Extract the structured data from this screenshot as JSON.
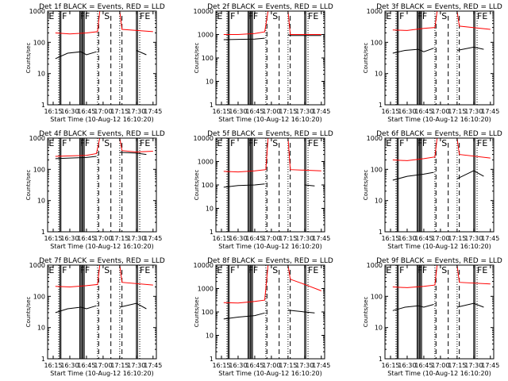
{
  "figure": {
    "xaxis_label": "Start Time (10-Aug-12 16:10:20)",
    "yaxis_label": "Counts/sec",
    "x_tick_labels": [
      "16:15",
      "16:30",
      "16:45",
      "17:00",
      "17:15",
      "17:30",
      "17:45"
    ],
    "colors": {
      "events": "#000000",
      "lld": "#ff0000",
      "frame": "#000000"
    },
    "markers": {
      "e_label": "E",
      "f_label": "F",
      "s_label": "S"
    }
  },
  "chart_data": [
    {
      "type": "line",
      "title": "Det 1f  BLACK = Events, RED = LLD",
      "xlabel": "Start Time (10-Aug-12 16:10:20)",
      "ylabel": "Counts/sec",
      "x_range": [
        "16:10",
        "17:48"
      ],
      "y_scale": "log",
      "ylim": [
        1,
        1000
      ],
      "y_tick_labels": [
        "1",
        "10",
        "100",
        "1000"
      ],
      "grid": false,
      "series": [
        {
          "name": "Events",
          "color": "#000000",
          "segments": [
            {
              "x": [
                "16:17",
                "16:28",
                "16:40",
                "16:45",
                "16:54"
              ],
              "y": [
                30,
                45,
                50,
                40,
                50
              ]
            },
            {
              "x": [
                "17:30",
                "17:39"
              ],
              "y": [
                55,
                40
              ]
            }
          ]
        },
        {
          "name": "LLD",
          "color": "#ff0000",
          "segments": [
            {
              "x": [
                "16:17",
                "16:30",
                "16:45",
                "16:55",
                "16:57",
                "17:15",
                "17:17",
                "17:45"
              ],
              "y": [
                200,
                185,
                200,
                220,
                1000,
                1000,
                260,
                220
              ]
            }
          ]
        }
      ],
      "events_markers": {
        "solid": [
          "16:21",
          "16:22",
          "16:39",
          "16:40",
          "16:41",
          "16:42",
          "16:43",
          "17:30",
          "17:31"
        ],
        "dashed": [
          "16:56",
          "17:07",
          "17:17"
        ],
        "dotted": [
          "16:20",
          "16:55",
          "17:15",
          "17:33"
        ]
      }
    },
    {
      "type": "line",
      "title": "Det 2f  BLACK = Events, RED = LLD",
      "xlabel": "Start Time (10-Aug-12 16:10:20)",
      "ylabel": "Counts/sec",
      "x_range": [
        "16:10",
        "17:48"
      ],
      "y_scale": "log",
      "ylim": [
        1,
        10000
      ],
      "y_tick_labels": [
        "1",
        "10",
        "100",
        "1000",
        "10000"
      ],
      "grid": false,
      "series": [
        {
          "name": "Events",
          "color": "#000000",
          "segments": [
            {
              "x": [
                "16:17",
                "16:30",
                "16:45",
                "16:54"
              ],
              "y": [
                600,
                620,
                640,
                700
              ]
            },
            {
              "x": [
                "17:15",
                "17:17",
                "17:30",
                "17:45"
              ],
              "y": [
                1000,
                900,
                900,
                900
              ]
            }
          ]
        },
        {
          "name": "LLD",
          "color": "#ff0000",
          "segments": [
            {
              "x": [
                "16:17",
                "16:30",
                "16:45",
                "16:54",
                "16:57",
                "17:15",
                "17:17",
                "17:45"
              ],
              "y": [
                1000,
                1000,
                1100,
                1300,
                10000,
                10000,
                1000,
                1000
              ]
            }
          ]
        }
      ],
      "events_markers": {
        "solid": [
          "16:21",
          "16:22",
          "16:39",
          "16:40",
          "16:41",
          "16:42",
          "16:43",
          "17:30",
          "17:31"
        ],
        "dashed": [
          "16:56",
          "17:07",
          "17:17"
        ],
        "dotted": [
          "16:20",
          "16:55",
          "17:15",
          "17:33"
        ]
      }
    },
    {
      "type": "line",
      "title": "Det 3f  BLACK = Events, RED = LLD",
      "xlabel": "Start Time (10-Aug-12 16:10:20)",
      "ylabel": "Counts/sec",
      "x_range": [
        "16:10",
        "17:48"
      ],
      "y_scale": "log",
      "ylim": [
        1,
        1000
      ],
      "y_tick_labels": [
        "1",
        "10",
        "100",
        "1000"
      ],
      "grid": false,
      "series": [
        {
          "name": "Events",
          "color": "#000000",
          "segments": [
            {
              "x": [
                "16:17",
                "16:28",
                "16:40",
                "16:45",
                "16:54"
              ],
              "y": [
                45,
                55,
                60,
                50,
                65
              ]
            },
            {
              "x": [
                "17:15",
                "17:30",
                "17:39"
              ],
              "y": [
                55,
                70,
                60
              ]
            }
          ]
        },
        {
          "name": "LLD",
          "color": "#ff0000",
          "segments": [
            {
              "x": [
                "16:17",
                "16:30",
                "16:45",
                "16:55",
                "16:57",
                "17:15",
                "17:17",
                "17:45"
              ],
              "y": [
                250,
                240,
                280,
                300,
                1000,
                1000,
                330,
                260
              ]
            }
          ]
        }
      ],
      "events_markers": {
        "solid": [
          "16:21",
          "16:22",
          "16:39",
          "16:40",
          "16:41",
          "16:42",
          "16:43",
          "17:30",
          "17:31"
        ],
        "dashed": [
          "16:56",
          "17:07",
          "17:17"
        ],
        "dotted": [
          "16:20",
          "16:55",
          "17:15",
          "17:33"
        ]
      }
    },
    {
      "type": "line",
      "title": "Det 4f  BLACK = Events, RED = LLD",
      "xlabel": "Start Time (10-Aug-12 16:10:20)",
      "ylabel": "Counts/sec",
      "x_range": [
        "16:10",
        "17:48"
      ],
      "y_scale": "log",
      "ylim": [
        1,
        1000
      ],
      "y_tick_labels": [
        "1",
        "10",
        "100",
        "1000"
      ],
      "grid": false,
      "series": [
        {
          "name": "Events",
          "color": "#000000",
          "segments": [
            {
              "x": [
                "16:17",
                "16:30",
                "16:45",
                "16:54"
              ],
              "y": [
                220,
                230,
                240,
                260
              ]
            },
            {
              "x": [
                "17:15",
                "17:30",
                "17:39"
              ],
              "y": [
                350,
                330,
                300
              ]
            }
          ]
        },
        {
          "name": "LLD",
          "color": "#ff0000",
          "segments": [
            {
              "x": [
                "16:17",
                "16:30",
                "16:45",
                "16:54",
                "16:57",
                "17:15",
                "17:17",
                "17:30",
                "17:45"
              ],
              "y": [
                260,
                270,
                280,
                320,
                1000,
                1000,
                400,
                360,
                380
              ]
            }
          ]
        }
      ],
      "events_markers": {
        "solid": [
          "16:21",
          "16:22",
          "16:39",
          "16:40",
          "16:41",
          "16:42",
          "16:43",
          "17:30",
          "17:31"
        ],
        "dashed": [
          "16:56",
          "17:07",
          "17:17"
        ],
        "dotted": [
          "16:20",
          "16:55",
          "17:15",
          "17:33"
        ]
      }
    },
    {
      "type": "line",
      "title": "Det 5f  BLACK = Events, RED = LLD",
      "xlabel": "Start Time (10-Aug-12 16:10:20)",
      "ylabel": "Counts/sec",
      "x_range": [
        "16:10",
        "17:48"
      ],
      "y_scale": "log",
      "ylim": [
        1,
        10000
      ],
      "y_tick_labels": [
        "1",
        "10",
        "100",
        "1000",
        "10000"
      ],
      "grid": false,
      "series": [
        {
          "name": "Events",
          "color": "#000000",
          "segments": [
            {
              "x": [
                "16:17",
                "16:30",
                "16:45",
                "16:54"
              ],
              "y": [
                80,
                95,
                100,
                110
              ]
            },
            {
              "x": [
                "17:30",
                "17:39"
              ],
              "y": [
                100,
                90
              ]
            }
          ]
        },
        {
          "name": "LLD",
          "color": "#ff0000",
          "segments": [
            {
              "x": [
                "16:17",
                "16:30",
                "16:45",
                "16:55",
                "16:57",
                "17:15",
                "17:17",
                "17:45"
              ],
              "y": [
                380,
                360,
                400,
                450,
                10000,
                10000,
                450,
                400
              ]
            }
          ]
        }
      ],
      "events_markers": {
        "solid": [
          "16:21",
          "16:22",
          "16:39",
          "16:40",
          "16:41",
          "16:42",
          "16:43",
          "17:30",
          "17:31"
        ],
        "dashed": [
          "16:56",
          "17:07",
          "17:17"
        ],
        "dotted": [
          "16:20",
          "16:55",
          "17:15",
          "17:33"
        ]
      }
    },
    {
      "type": "line",
      "title": "Det 6f  BLACK = Events, RED = LLD",
      "xlabel": "Start Time (10-Aug-12 16:10:20)",
      "ylabel": "Counts/sec",
      "x_range": [
        "16:10",
        "17:48"
      ],
      "y_scale": "log",
      "ylim": [
        1,
        1000
      ],
      "y_tick_labels": [
        "1",
        "10",
        "100",
        "1000"
      ],
      "grid": false,
      "series": [
        {
          "name": "Events",
          "color": "#000000",
          "segments": [
            {
              "x": [
                "16:17",
                "16:30",
                "16:45",
                "16:54"
              ],
              "y": [
                45,
                60,
                70,
                80
              ]
            },
            {
              "x": [
                "17:15",
                "17:30",
                "17:39"
              ],
              "y": [
                50,
                90,
                60
              ]
            }
          ]
        },
        {
          "name": "LLD",
          "color": "#ff0000",
          "segments": [
            {
              "x": [
                "16:17",
                "16:30",
                "16:45",
                "16:55",
                "16:57",
                "17:15",
                "17:17",
                "17:45"
              ],
              "y": [
                200,
                190,
                220,
                250,
                1000,
                1000,
                300,
                230
              ]
            }
          ]
        }
      ],
      "events_markers": {
        "solid": [
          "16:21",
          "16:22",
          "16:39",
          "16:40",
          "16:41",
          "16:42",
          "16:43",
          "17:30",
          "17:31"
        ],
        "dashed": [
          "16:56",
          "17:07",
          "17:17"
        ],
        "dotted": [
          "16:20",
          "16:55",
          "17:15",
          "17:33"
        ]
      }
    },
    {
      "type": "line",
      "title": "Det 7f  BLACK = Events, RED = LLD",
      "xlabel": "Start Time (10-Aug-12 16:10:20)",
      "ylabel": "Counts/sec",
      "x_range": [
        "16:10",
        "17:48"
      ],
      "y_scale": "log",
      "ylim": [
        1,
        1000
      ],
      "y_tick_labels": [
        "1",
        "10",
        "100",
        "1000"
      ],
      "grid": false,
      "series": [
        {
          "name": "Events",
          "color": "#000000",
          "segments": [
            {
              "x": [
                "16:17",
                "16:28",
                "16:40",
                "16:45",
                "16:54"
              ],
              "y": [
                30,
                40,
                45,
                40,
                50
              ]
            },
            {
              "x": [
                "17:15",
                "17:30",
                "17:39"
              ],
              "y": [
                45,
                60,
                40
              ]
            }
          ]
        },
        {
          "name": "LLD",
          "color": "#ff0000",
          "segments": [
            {
              "x": [
                "16:17",
                "16:30",
                "16:45",
                "16:55",
                "16:57",
                "17:15",
                "17:17",
                "17:45"
              ],
              "y": [
                210,
                200,
                220,
                240,
                1000,
                1000,
                280,
                230
              ]
            }
          ]
        }
      ],
      "events_markers": {
        "solid": [
          "16:21",
          "16:22",
          "16:39",
          "16:40",
          "16:41",
          "16:42",
          "16:43",
          "17:30",
          "17:31"
        ],
        "dashed": [
          "16:56",
          "17:07",
          "17:17"
        ],
        "dotted": [
          "16:20",
          "16:55",
          "17:15",
          "17:33"
        ]
      }
    },
    {
      "type": "line",
      "title": "Det 8f  BLACK = Events, RED = LLD",
      "xlabel": "Start Time (10-Aug-12 16:10:20)",
      "ylabel": "Counts/sec",
      "x_range": [
        "16:10",
        "17:48"
      ],
      "y_scale": "log",
      "ylim": [
        1,
        10000
      ],
      "y_tick_labels": [
        "1",
        "10",
        "100",
        "1000",
        "10000"
      ],
      "grid": false,
      "series": [
        {
          "name": "Events",
          "color": "#000000",
          "segments": [
            {
              "x": [
                "16:17",
                "16:30",
                "16:45",
                "16:54"
              ],
              "y": [
                50,
                60,
                70,
                90
              ]
            },
            {
              "x": [
                "17:15",
                "17:30",
                "17:39"
              ],
              "y": [
                120,
                100,
                90
              ]
            }
          ]
        },
        {
          "name": "LLD",
          "color": "#ff0000",
          "segments": [
            {
              "x": [
                "16:17",
                "16:30",
                "16:45",
                "16:54",
                "16:57",
                "17:15",
                "17:17",
                "17:30",
                "17:45"
              ],
              "y": [
                250,
                240,
                280,
                320,
                10000,
                10000,
                2500,
                1500,
                800
              ]
            }
          ]
        }
      ],
      "events_markers": {
        "solid": [
          "16:21",
          "16:22",
          "16:39",
          "16:40",
          "16:41",
          "16:42",
          "16:43",
          "17:30",
          "17:31"
        ],
        "dashed": [
          "16:56",
          "17:07",
          "17:17"
        ],
        "dotted": [
          "16:20",
          "16:55",
          "17:15",
          "17:33"
        ]
      }
    },
    {
      "type": "line",
      "title": "Det 9f  BLACK = Events, RED = LLD",
      "xlabel": "Start Time (10-Aug-12 16:10:20)",
      "ylabel": "Counts/sec",
      "x_range": [
        "16:10",
        "17:48"
      ],
      "y_scale": "log",
      "ylim": [
        1,
        1000
      ],
      "y_tick_labels": [
        "1",
        "10",
        "100",
        "1000"
      ],
      "grid": false,
      "series": [
        {
          "name": "Events",
          "color": "#000000",
          "segments": [
            {
              "x": [
                "16:17",
                "16:28",
                "16:40",
                "16:45",
                "16:54"
              ],
              "y": [
                35,
                45,
                50,
                45,
                55
              ]
            },
            {
              "x": [
                "17:15",
                "17:30",
                "17:39"
              ],
              "y": [
                45,
                60,
                45
              ]
            }
          ]
        },
        {
          "name": "LLD",
          "color": "#ff0000",
          "segments": [
            {
              "x": [
                "16:17",
                "16:30",
                "16:45",
                "16:55",
                "16:57",
                "17:15",
                "17:17",
                "17:45"
              ],
              "y": [
                200,
                190,
                210,
                230,
                1000,
                1000,
                280,
                250
              ]
            }
          ]
        }
      ],
      "events_markers": {
        "solid": [
          "16:21",
          "16:22",
          "16:39",
          "16:40",
          "16:41",
          "16:42",
          "16:43",
          "17:30",
          "17:31"
        ],
        "dashed": [
          "16:56",
          "17:07",
          "17:17"
        ],
        "dotted": [
          "16:20",
          "16:55",
          "17:15",
          "17:33"
        ]
      }
    }
  ]
}
